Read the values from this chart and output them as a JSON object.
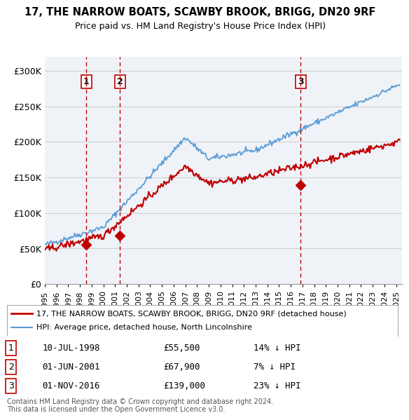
{
  "title": "17, THE NARROW BOATS, SCAWBY BROOK, BRIGG, DN20 9RF",
  "subtitle": "Price paid vs. HM Land Registry's House Price Index (HPI)",
  "xlim_start": 1995.0,
  "xlim_end": 2025.5,
  "ylim": [
    0,
    320000
  ],
  "yticks": [
    0,
    50000,
    100000,
    150000,
    200000,
    250000,
    300000
  ],
  "ytick_labels": [
    "£0",
    "£50K",
    "£100K",
    "£150K",
    "£200K",
    "£250K",
    "£300K"
  ],
  "hpi_color": "#5b9bd5",
  "price_color": "#c00000",
  "sale_marker_color": "#c00000",
  "vline_color": "#c00000",
  "shade_color": "#dce6f1",
  "transactions": [
    {
      "num": 1,
      "date_x": 1998.53,
      "price": 55500,
      "label": "1",
      "date_str": "10-JUL-1998",
      "price_str": "£55,500",
      "hpi_str": "14% ↓ HPI"
    },
    {
      "num": 2,
      "date_x": 2001.42,
      "price": 67900,
      "label": "2",
      "date_str": "01-JUN-2001",
      "price_str": "£67,900",
      "hpi_str": "7% ↓ HPI"
    },
    {
      "num": 3,
      "date_x": 2016.84,
      "price": 139000,
      "label": "3",
      "date_str": "01-NOV-2016",
      "price_str": "£139,000",
      "hpi_str": "23% ↓ HPI"
    }
  ],
  "legend_entries": [
    {
      "label": "17, THE NARROW BOATS, SCAWBY BROOK, BRIGG, DN20 9RF (detached house)",
      "color": "#c00000",
      "lw": 2
    },
    {
      "label": "HPI: Average price, detached house, North Lincolnshire",
      "color": "#5b9bd5",
      "lw": 1.5
    }
  ],
  "footnote": "Contains HM Land Registry data © Crown copyright and database right 2024.\nThis data is licensed under the Open Government Licence v3.0.",
  "bg_color": "#ffffff",
  "plot_bg_color": "#ffffff",
  "grid_color": "#d0d0d0",
  "xtick_years": [
    1995,
    1996,
    1997,
    1998,
    1999,
    2000,
    2001,
    2002,
    2003,
    2004,
    2005,
    2006,
    2007,
    2008,
    2009,
    2010,
    2011,
    2012,
    2013,
    2014,
    2015,
    2016,
    2017,
    2018,
    2019,
    2020,
    2021,
    2022,
    2023,
    2024,
    2025
  ]
}
